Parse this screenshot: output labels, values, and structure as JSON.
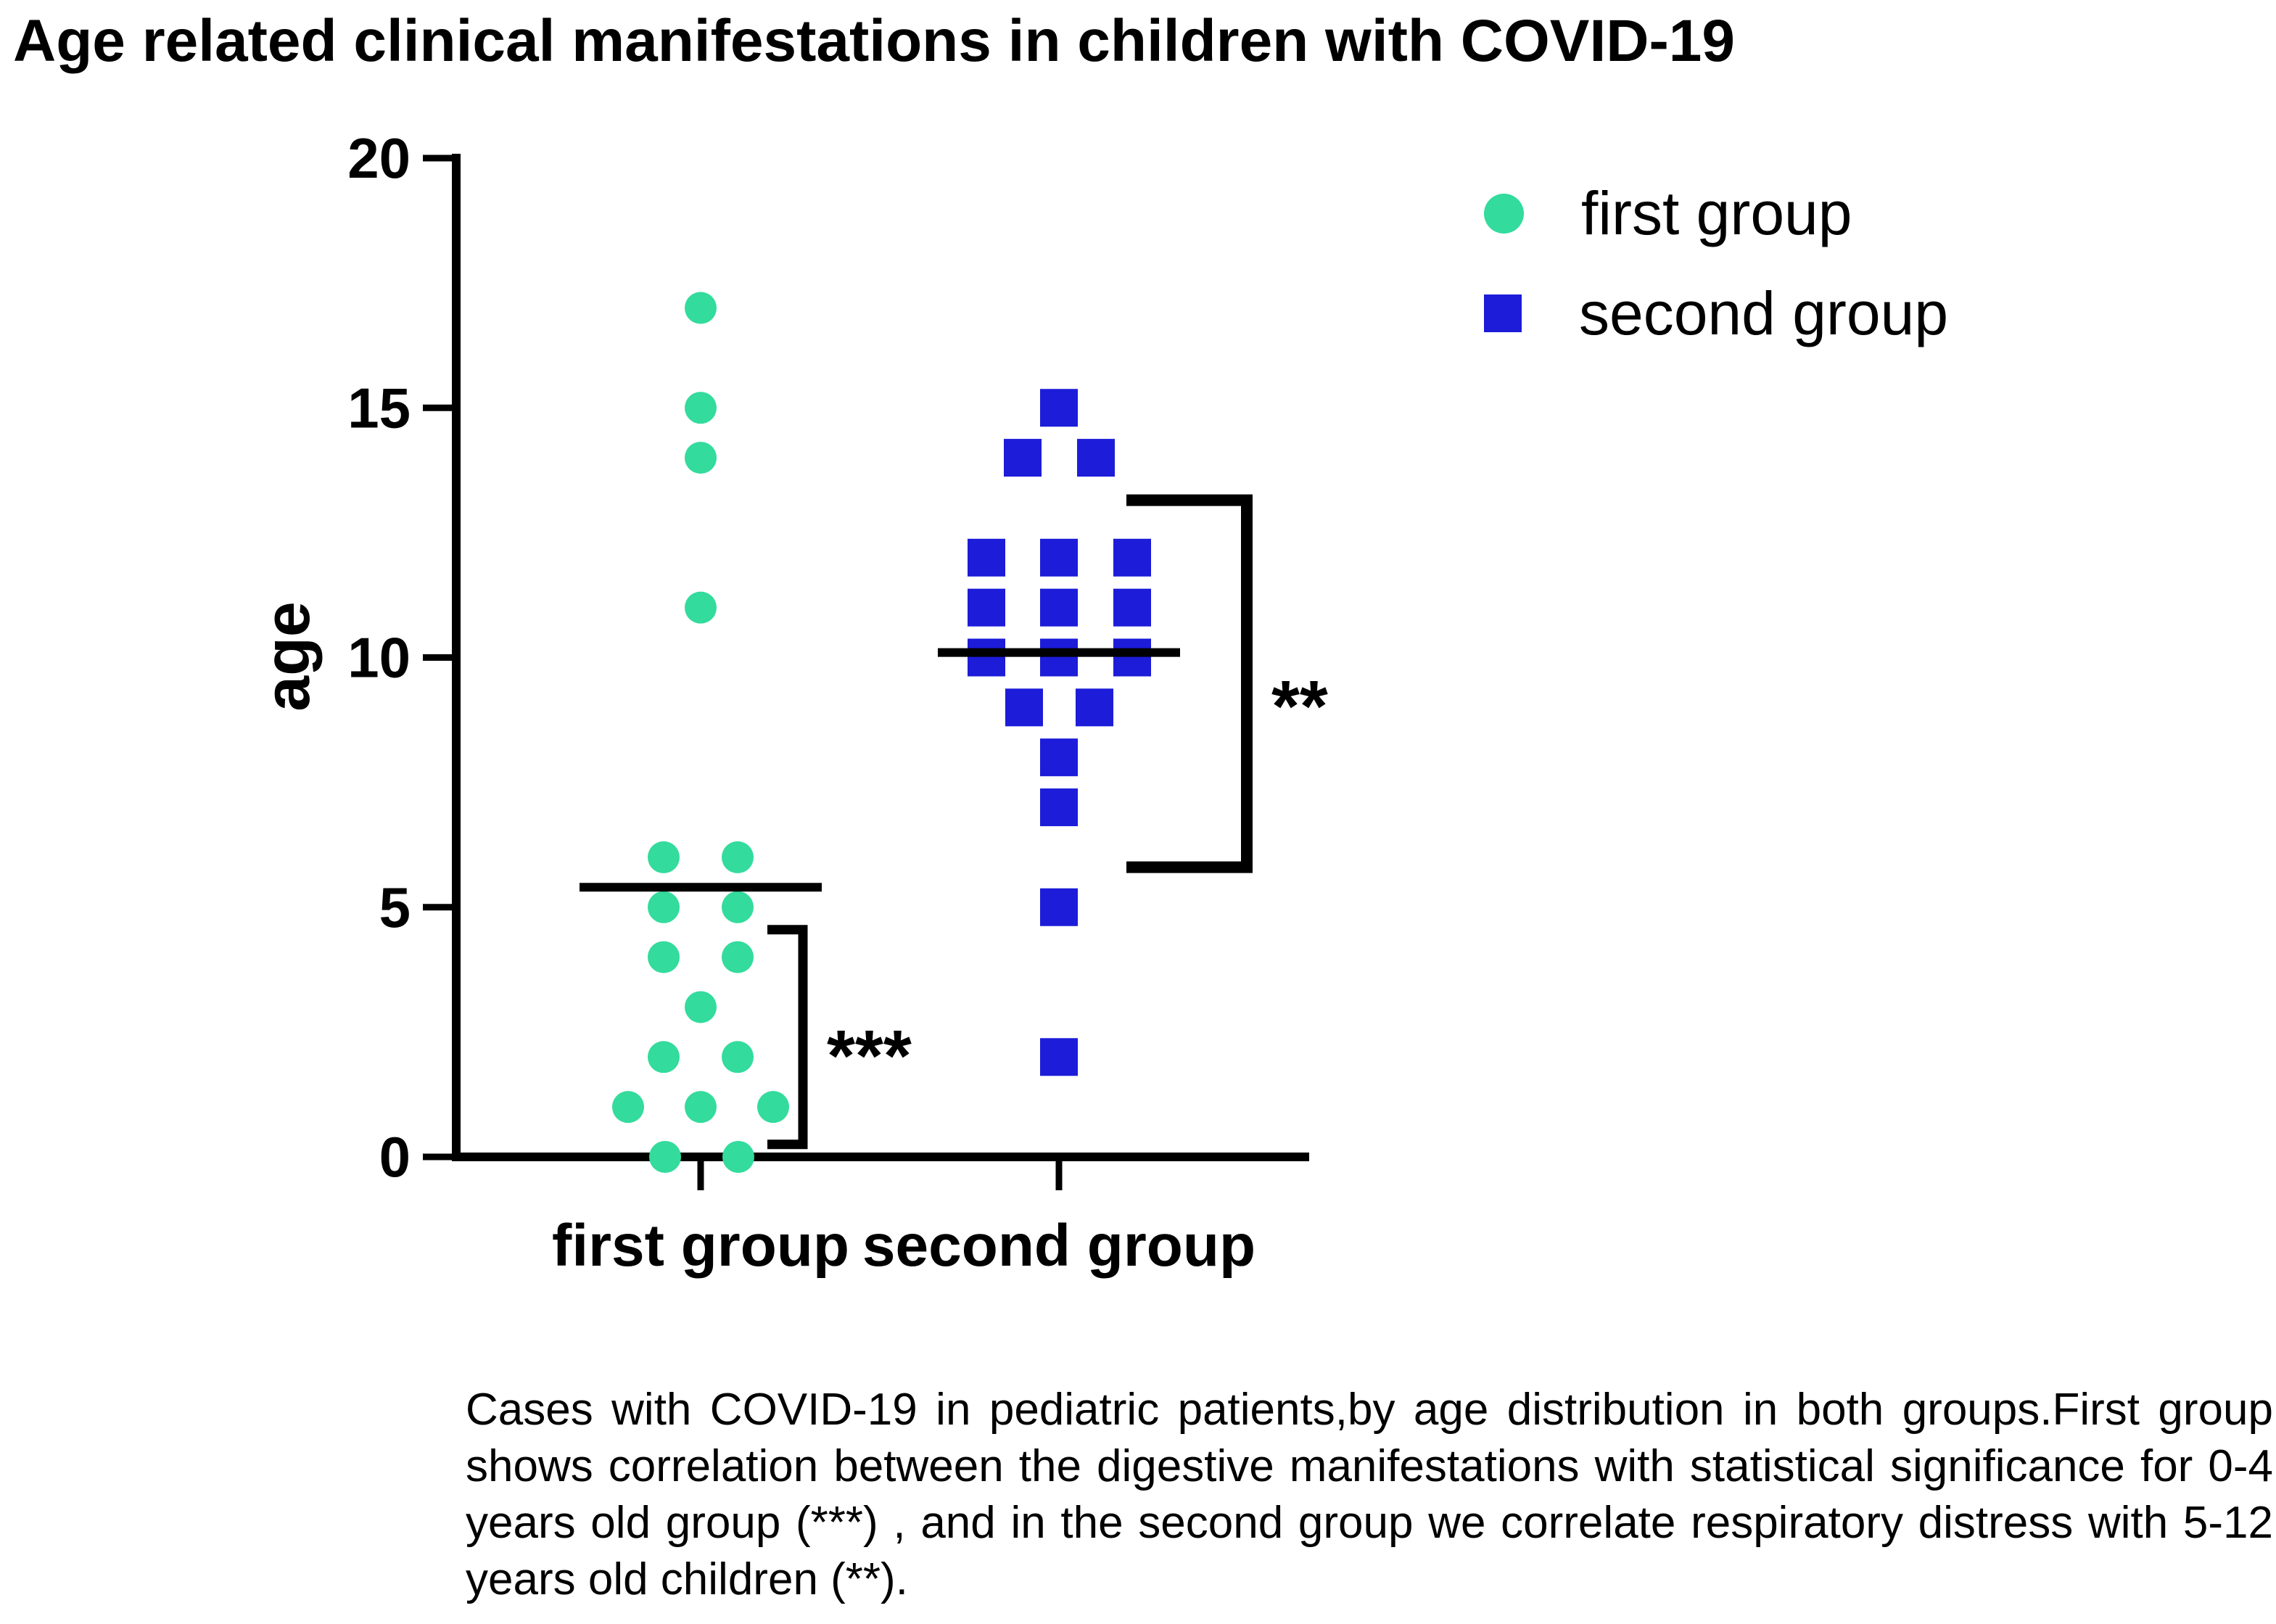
{
  "title": "Age related clinical manifestations in children with COVID-19",
  "legend": {
    "items": [
      {
        "label": "first group",
        "shape": "circle",
        "color": "#33DB9C"
      },
      {
        "label": "second group",
        "shape": "square",
        "color": "#1C1CD9"
      }
    ]
  },
  "caption": "Cases with COVID-19 in pediatric patients,by age distribution in both groups.First group shows correlation between the digestive manifestations with statistical significance for 0-4 years old group (***) , and in the second group we correlate respiratory distress with 5-12 years old children (**).",
  "chart_data": {
    "type": "scatter",
    "title": "Age related clinical manifestations in children with COVID-19",
    "xlabel": "",
    "ylabel": "age",
    "ylim": [
      0,
      20
    ],
    "yticks": [
      0,
      5,
      10,
      15,
      20
    ],
    "categories": [
      "first group",
      "second group"
    ],
    "grid": false,
    "legend_position": "top-right",
    "series": [
      {
        "name": "first group",
        "marker": "circle",
        "color": "#33DB9C",
        "mean": 5.4,
        "values": [
          17,
          15,
          14,
          11,
          6,
          6,
          5,
          5,
          4,
          4,
          3,
          2,
          2,
          1,
          1,
          1,
          0,
          0
        ],
        "points": [
          {
            "age": 17,
            "dx": 0
          },
          {
            "age": 15,
            "dx": 0
          },
          {
            "age": 14,
            "dx": 0
          },
          {
            "age": 11,
            "dx": 0
          },
          {
            "age": 6,
            "dx": -51
          },
          {
            "age": 6,
            "dx": 51
          },
          {
            "age": 5,
            "dx": -51
          },
          {
            "age": 5,
            "dx": 51
          },
          {
            "age": 4,
            "dx": -51
          },
          {
            "age": 4,
            "dx": 51
          },
          {
            "age": 3,
            "dx": 0
          },
          {
            "age": 2,
            "dx": -51
          },
          {
            "age": 2,
            "dx": 51
          },
          {
            "age": 1,
            "dx": -100
          },
          {
            "age": 1,
            "dx": 0
          },
          {
            "age": 1,
            "dx": 100
          },
          {
            "age": 0,
            "dx": -49
          },
          {
            "age": 0,
            "dx": 52
          }
        ]
      },
      {
        "name": "second group",
        "marker": "square",
        "color": "#1C1CD9",
        "mean": 10.1,
        "values": [
          15,
          14,
          14,
          12,
          12,
          12,
          11,
          11,
          11,
          10,
          10,
          10,
          9,
          9,
          8,
          7,
          5,
          2
        ],
        "points": [
          {
            "age": 15,
            "dx": 0
          },
          {
            "age": 14,
            "dx": -50
          },
          {
            "age": 14,
            "dx": 51
          },
          {
            "age": 12,
            "dx": -100
          },
          {
            "age": 12,
            "dx": 0
          },
          {
            "age": 12,
            "dx": 101
          },
          {
            "age": 11,
            "dx": -100
          },
          {
            "age": 11,
            "dx": 0
          },
          {
            "age": 11,
            "dx": 101
          },
          {
            "age": 10,
            "dx": -100
          },
          {
            "age": 10,
            "dx": 0
          },
          {
            "age": 10,
            "dx": 101
          },
          {
            "age": 9,
            "dx": -48
          },
          {
            "age": 9,
            "dx": 49
          },
          {
            "age": 8,
            "dx": 0
          },
          {
            "age": 7,
            "dx": 0
          },
          {
            "age": 5,
            "dx": 0
          },
          {
            "age": 2,
            "dx": 0
          }
        ]
      }
    ],
    "annotations": [
      {
        "stars": "***",
        "group": "first group",
        "age_top": 4.55,
        "age_bottom": 0.25
      },
      {
        "stars": "**",
        "group": "second group",
        "age_top": 13.15,
        "age_bottom": 5.8
      }
    ]
  }
}
